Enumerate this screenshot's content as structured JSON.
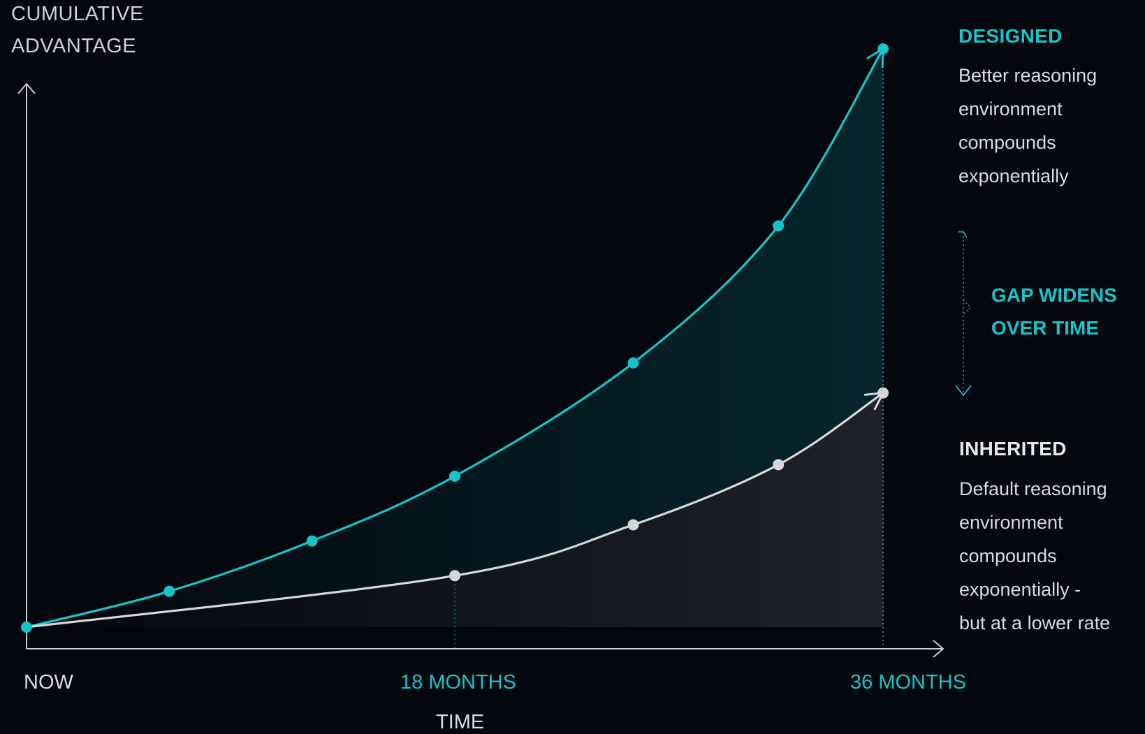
{
  "colors": {
    "designed": "#17c4c8",
    "inherited": "#d4d6da",
    "axis": "#c8ccd2",
    "background": "#03070e"
  },
  "chart_data": {
    "type": "line",
    "ylabel_lines": [
      "CUMULATIVE",
      "ADVANTAGE"
    ],
    "xlabel": "TIME",
    "x_ticks": [
      {
        "x": 0,
        "label": "NOW",
        "color": "#d8dbe0"
      },
      {
        "x": 18,
        "label": "18 MONTHS",
        "color": "#17c4c8"
      },
      {
        "x": 36,
        "label": "36 MONTHS",
        "color": "#17c4c8"
      }
    ],
    "xlim": [
      0,
      38.2
    ],
    "ylim": [
      0,
      100
    ],
    "y_ticks_shown": false,
    "grid": false,
    "series": [
      {
        "name": "DESIGNED",
        "color": "#17c4c8",
        "x": [
          0,
          6,
          12,
          18,
          25.5,
          31.6,
          36
        ],
        "y": [
          0,
          6.2,
          14.9,
          26.1,
          45.7,
          69.4,
          100
        ]
      },
      {
        "name": "INHERITED",
        "color": "#d4d6da",
        "x": [
          0,
          18,
          25.5,
          31.6,
          36
        ],
        "y": [
          0,
          8.9,
          17.7,
          28.1,
          40.5
        ]
      }
    ],
    "legend": [
      {
        "title": "DESIGNED",
        "lines": [
          "Better reasoning",
          "environment",
          "compounds",
          "exponentially"
        ],
        "color": "#17c4c8"
      },
      {
        "title": "INHERITED",
        "lines": [
          "Default reasoning",
          "environment",
          "compounds",
          "exponentially  -",
          "but at a lower rate"
        ],
        "color": "#e6e8eb"
      }
    ],
    "annotation": {
      "lines": [
        "GAP WIDENS",
        "OVER TIME"
      ],
      "color": "#17c4c8"
    }
  }
}
